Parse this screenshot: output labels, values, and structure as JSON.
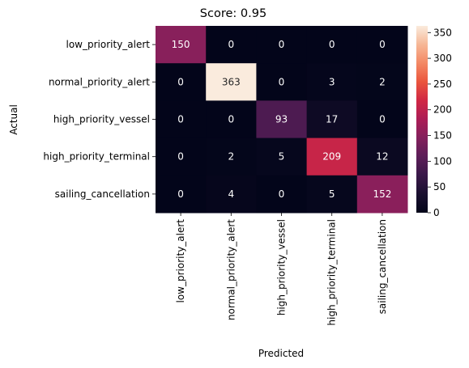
{
  "chart_data": {
    "type": "heatmap",
    "title": "Score: 0.95",
    "xlabel": "Predicted",
    "ylabel": "Actual",
    "x_categories": [
      "low_priority_alert",
      "normal_priority_alert",
      "high_priority_vessel",
      "high_priority_terminal",
      "sailing_cancellation"
    ],
    "y_categories": [
      "low_priority_alert",
      "normal_priority_alert",
      "high_priority_vessel",
      "high_priority_terminal",
      "sailing_cancellation"
    ],
    "values": [
      [
        150,
        0,
        0,
        0,
        0
      ],
      [
        0,
        363,
        0,
        3,
        2
      ],
      [
        0,
        0,
        93,
        17,
        0
      ],
      [
        0,
        2,
        5,
        209,
        12
      ],
      [
        0,
        4,
        0,
        5,
        152
      ]
    ],
    "colormap": "rocket",
    "colorbar": {
      "range": [
        0,
        363
      ],
      "ticks": [
        0,
        50,
        100,
        150,
        200,
        250,
        300,
        350
      ]
    },
    "annotations": true
  }
}
